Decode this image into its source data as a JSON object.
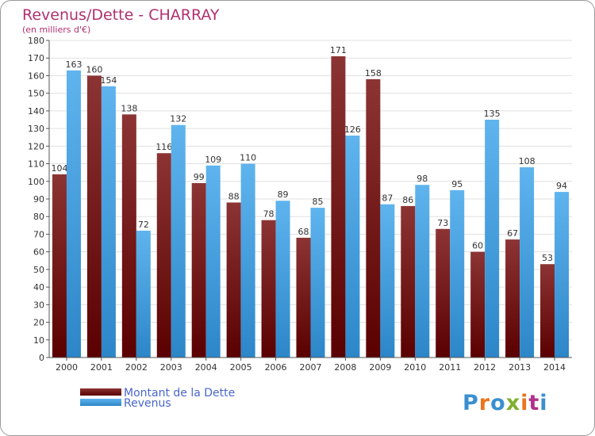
{
  "chart_data": {
    "type": "bar",
    "title": "Revenus/Dette - CHARRAY",
    "subtitle": "(en milliers d'€)",
    "categories": [
      "2000",
      "2001",
      "2002",
      "2003",
      "2004",
      "2005",
      "2006",
      "2007",
      "2008",
      "2009",
      "2010",
      "2011",
      "2012",
      "2013",
      "2014"
    ],
    "series": [
      {
        "name": "Montant de la Dette",
        "values": [
          104,
          160,
          138,
          116,
          99,
          88,
          78,
          68,
          171,
          158,
          86,
          73,
          60,
          67,
          53
        ]
      },
      {
        "name": "Revenus",
        "values": [
          163,
          154,
          72,
          132,
          109,
          110,
          89,
          85,
          126,
          87,
          98,
          95,
          135,
          108,
          94
        ]
      }
    ],
    "ylim": [
      0,
      180
    ],
    "y_ticks": [
      0,
      10,
      20,
      30,
      40,
      50,
      60,
      70,
      80,
      90,
      100,
      110,
      120,
      130,
      140,
      150,
      160,
      170,
      180
    ],
    "grid": true,
    "legend_position": "bottom-left",
    "colors": {
      "dette_dark": "#5a0000",
      "dette_light": "#8c3434",
      "revenus_dark": "#2c86c8",
      "revenus_light": "#5fb4ee",
      "title": "#b03070",
      "legend_text": "#4a66cc"
    }
  },
  "branding": {
    "logo_text": "Proxiti",
    "logo_colors": [
      "#3a8fd0",
      "#e8761e",
      "#3a8fd0",
      "#80b030",
      "#e8761e",
      "#b0308a",
      "#3a8fd0"
    ]
  }
}
